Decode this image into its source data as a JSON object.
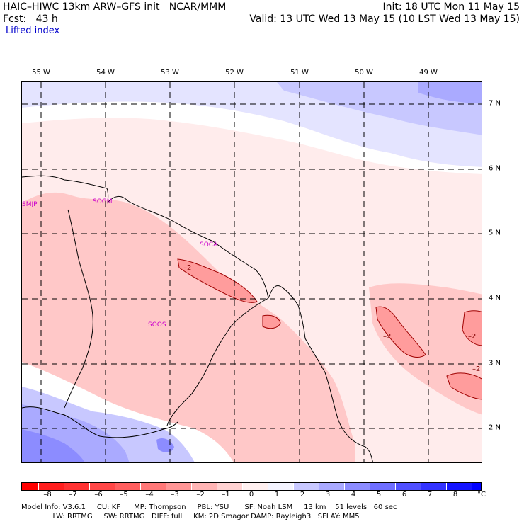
{
  "header": {
    "left_line1": "HAIC–HIWC 13km ARW–GFS init   NCAR/MMM",
    "left_line2": "Fcst:   43 h",
    "right_line1": "Init: 18 UTC Mon 11 May 15",
    "right_line2": "Valid: 13 UTC Wed 13 May 15 (10 LST Wed 13 May 15)",
    "field": "Lifted index"
  },
  "map": {
    "lon_labels": [
      "55 W",
      "54 W",
      "53 W",
      "52 W",
      "51 W",
      "50 W",
      "49 W"
    ],
    "lat_labels": [
      "7 N",
      "6 N",
      "5 N",
      "4 N",
      "3 N",
      "2 N"
    ],
    "stations": [
      "SMJP",
      "SOGM",
      "SOCA",
      "SOOS"
    ],
    "contour_labels": [
      "–2",
      "–2",
      "–2",
      "–2"
    ]
  },
  "colorbar": {
    "ticks": [
      "–8",
      "–7",
      "–6",
      "–5",
      "–4",
      "–3",
      "–2",
      "–1",
      "0",
      "1",
      "2",
      "3",
      "4",
      "5",
      "6",
      "7",
      "8"
    ],
    "unit": "°C",
    "colors": [
      "#ff0000",
      "#ff2424",
      "#ff4646",
      "#ff6464",
      "#ff8282",
      "#ffa0a0",
      "#ffbebe",
      "#ffdcdc",
      "#ffffff",
      "#ffffff",
      "#c8c8ff",
      "#aaaaff",
      "#8c8cff",
      "#6e6eff",
      "#5050ff",
      "#3232ff",
      "#0000ff"
    ]
  },
  "footer": {
    "line1": "Model Info: V3.6.1     CU: KF      MP: Thompson     PBL: YSU       SF: Noah LSM     13 km    51 levels   60 sec",
    "line2": "              LW: RRTMG     SW: RRTMG   DIFF: full     KM: 2D Smagor DAMP: Rayleigh3   SFLAY: MM5"
  }
}
